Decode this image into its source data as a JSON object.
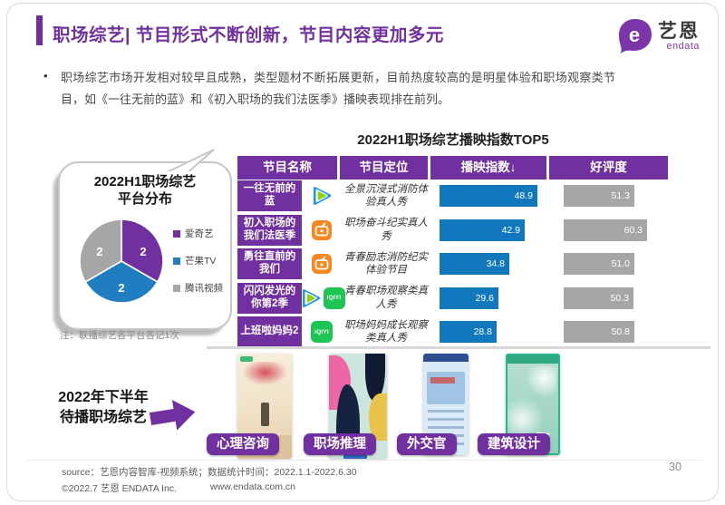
{
  "slide": {
    "title": "职场综艺| 节目形式不断创新，节目内容更加多元",
    "bullet": "职场综艺市场开发相对较早且成熟，类型题材不断拓展更新，目前热度较高的是明星体验和职场观察类节目，如《一往无前的蓝》和《初入职场的我们法医季》播映表现排在前列。",
    "page_number": "30"
  },
  "logo": {
    "name": "艺恩",
    "sub": "endata"
  },
  "pie_card": {
    "title_line1": "2022H1职场综艺",
    "title_line2": "平台分布",
    "note": "注：联播综艺各平台各记1次"
  },
  "chart_data": [
    {
      "type": "pie",
      "title": "2022H1职场综艺平台分布",
      "labels": [
        "爱奇艺",
        "芒果TV",
        "腾讯视频"
      ],
      "values": [
        2,
        2,
        2
      ],
      "colors": [
        "#7030A0",
        "#1F7EC2",
        "#A6A6A6"
      ],
      "legend_position": "right",
      "note": "注：联播综艺各平台各记1次"
    },
    {
      "type": "bar",
      "title": "2022H1职场综艺播映指数TOP5",
      "categories": [
        "一往无前的蓝",
        "初入职场的我们法医季",
        "勇往直前的我们",
        "闪闪发光的你第2季",
        "上班啦妈妈2"
      ],
      "series": [
        {
          "name": "播映指数",
          "values": [
            48.9,
            42.9,
            34.8,
            29.6,
            28.8
          ],
          "color": "#1178BE"
        },
        {
          "name": "好评度",
          "values": [
            51.3,
            60.3,
            51.0,
            50.3,
            50.8
          ],
          "color": "#A6A6A6"
        }
      ],
      "sort": "播映指数 descending"
    }
  ],
  "table": {
    "title": "2022H1职场综艺播映指数TOP5",
    "columns": [
      "节目名称",
      "节目定位",
      "播映指数↓",
      "好评度"
    ],
    "rows": [
      {
        "name": "一往无前的蓝",
        "platforms": [
          "tencent"
        ],
        "positioning": "全景沉浸式消防体验真人秀",
        "index": "48.9",
        "rating": "51.3"
      },
      {
        "name": "初入职场的我们法医季",
        "platforms": [
          "mango"
        ],
        "positioning": "职场奋斗纪实真人秀",
        "index": "42.9",
        "rating": "60.3"
      },
      {
        "name": "勇往直前的我们",
        "platforms": [
          "mango"
        ],
        "positioning": "青春励志消防纪实体验节目",
        "index": "34.8",
        "rating": "51.0"
      },
      {
        "name": "闪闪发光的你第2季",
        "platforms": [
          "tencent",
          "iqiyi"
        ],
        "positioning": "青春职场观察类真人秀",
        "index": "29.6",
        "rating": "50.3"
      },
      {
        "name": "上班啦妈妈2",
        "platforms": [
          "iqiyi"
        ],
        "positioning": "职场妈妈成长观察类真人秀",
        "index": "28.8",
        "rating": "50.8"
      }
    ]
  },
  "icons": {
    "iqiyi_text": "iQIYI"
  },
  "upcoming": {
    "heading_line1": "2022年下半年",
    "heading_line2": "待播职场综艺",
    "items": [
      {
        "label": "心理咨询"
      },
      {
        "label": "职场推理"
      },
      {
        "label": "外交官"
      },
      {
        "label": "建筑设计"
      }
    ]
  },
  "footer": {
    "source": "source：艺恩内容智库-视频系统；数据统计时间：2022.1.1-2022.6.30",
    "copyright": "©2022.7 艺恩 ENDATA Inc.",
    "website": "www.endata.com.cn"
  },
  "colors": {
    "accent_purple": "#7030A0",
    "bar_blue": "#1178BE",
    "bar_gray": "#A6A6A6"
  }
}
